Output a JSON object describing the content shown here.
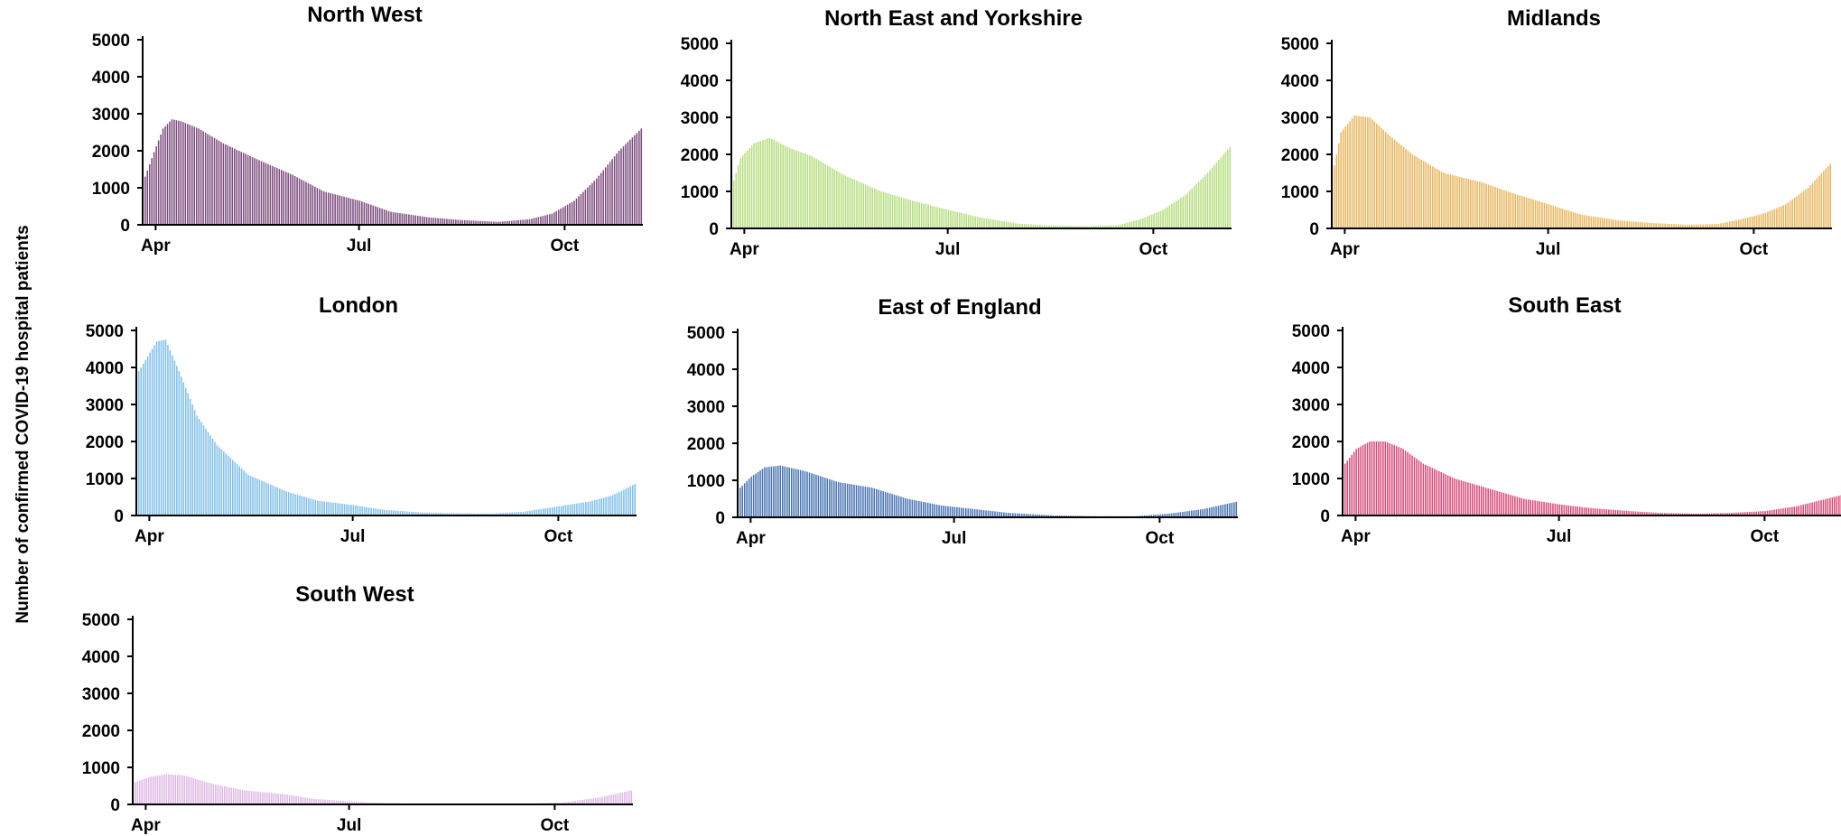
{
  "figure": {
    "ylabel": "Number of confirmed COVID-19 hospital patients"
  },
  "chart_data": [
    {
      "type": "bar",
      "title": "North West",
      "color": "#7b4a7c",
      "ylim": [
        0,
        5000
      ],
      "yticks": [
        0,
        1000,
        2000,
        3000,
        4000,
        5000
      ],
      "x_tick_labels": [
        "Apr",
        "Jul",
        "Oct"
      ],
      "x_range": [
        "2020-03-27",
        "2020-11-04"
      ],
      "keyframes": [
        [
          "2020-03-27",
          1300
        ],
        [
          "2020-03-30",
          1800
        ],
        [
          "2020-04-04",
          2600
        ],
        [
          "2020-04-08",
          2850
        ],
        [
          "2020-04-12",
          2800
        ],
        [
          "2020-04-20",
          2600
        ],
        [
          "2020-05-01",
          2200
        ],
        [
          "2020-05-15",
          1800
        ],
        [
          "2020-06-01",
          1350
        ],
        [
          "2020-06-15",
          900
        ],
        [
          "2020-07-01",
          650
        ],
        [
          "2020-07-15",
          350
        ],
        [
          "2020-08-01",
          200
        ],
        [
          "2020-08-15",
          130
        ],
        [
          "2020-09-01",
          80
        ],
        [
          "2020-09-15",
          150
        ],
        [
          "2020-09-25",
          300
        ],
        [
          "2020-10-05",
          650
        ],
        [
          "2020-10-15",
          1250
        ],
        [
          "2020-10-25",
          2000
        ],
        [
          "2020-11-04",
          2600
        ]
      ]
    },
    {
      "type": "bar",
      "title": "North East and Yorkshire",
      "color": "#b6dd7e",
      "ylim": [
        0,
        5000
      ],
      "yticks": [
        0,
        1000,
        2000,
        3000,
        4000,
        5000
      ],
      "x_tick_labels": [
        "Apr",
        "Jul",
        "Oct"
      ],
      "x_range": [
        "2020-03-27",
        "2020-11-04"
      ],
      "keyframes": [
        [
          "2020-03-27",
          1300
        ],
        [
          "2020-03-30",
          1900
        ],
        [
          "2020-04-05",
          2300
        ],
        [
          "2020-04-12",
          2450
        ],
        [
          "2020-04-20",
          2200
        ],
        [
          "2020-05-01",
          1950
        ],
        [
          "2020-05-15",
          1450
        ],
        [
          "2020-06-01",
          1000
        ],
        [
          "2020-06-15",
          750
        ],
        [
          "2020-07-01",
          500
        ],
        [
          "2020-07-15",
          300
        ],
        [
          "2020-08-01",
          130
        ],
        [
          "2020-08-15",
          80
        ],
        [
          "2020-09-01",
          60
        ],
        [
          "2020-09-15",
          90
        ],
        [
          "2020-09-25",
          250
        ],
        [
          "2020-10-05",
          500
        ],
        [
          "2020-10-15",
          900
        ],
        [
          "2020-10-25",
          1500
        ],
        [
          "2020-11-04",
          2200
        ]
      ]
    },
    {
      "type": "bar",
      "title": "Midlands",
      "color": "#e8b55c",
      "ylim": [
        0,
        5000
      ],
      "yticks": [
        0,
        1000,
        2000,
        3000,
        4000,
        5000
      ],
      "x_tick_labels": [
        "Apr",
        "Jul",
        "Oct"
      ],
      "x_range": [
        "2020-03-27",
        "2020-11-04"
      ],
      "keyframes": [
        [
          "2020-03-27",
          1700
        ],
        [
          "2020-03-30",
          2600
        ],
        [
          "2020-04-05",
          3050
        ],
        [
          "2020-04-12",
          3000
        ],
        [
          "2020-04-20",
          2550
        ],
        [
          "2020-05-01",
          2000
        ],
        [
          "2020-05-15",
          1500
        ],
        [
          "2020-05-25",
          1350
        ],
        [
          "2020-06-01",
          1250
        ],
        [
          "2020-06-15",
          950
        ],
        [
          "2020-07-01",
          650
        ],
        [
          "2020-07-15",
          380
        ],
        [
          "2020-08-01",
          220
        ],
        [
          "2020-08-15",
          150
        ],
        [
          "2020-09-01",
          100
        ],
        [
          "2020-09-15",
          120
        ],
        [
          "2020-09-25",
          250
        ],
        [
          "2020-10-05",
          400
        ],
        [
          "2020-10-15",
          650
        ],
        [
          "2020-10-25",
          1100
        ],
        [
          "2020-11-04",
          1750
        ]
      ]
    },
    {
      "type": "bar",
      "title": "London",
      "color": "#7fbfea",
      "ylim": [
        0,
        5000
      ],
      "yticks": [
        0,
        1000,
        2000,
        3000,
        4000,
        5000
      ],
      "x_tick_labels": [
        "Apr",
        "Jul",
        "Oct"
      ],
      "x_range": [
        "2020-03-27",
        "2020-11-04"
      ],
      "keyframes": [
        [
          "2020-03-27",
          3900
        ],
        [
          "2020-03-31",
          4300
        ],
        [
          "2020-04-04",
          4700
        ],
        [
          "2020-04-08",
          4750
        ],
        [
          "2020-04-14",
          3900
        ],
        [
          "2020-04-22",
          2700
        ],
        [
          "2020-05-01",
          1900
        ],
        [
          "2020-05-15",
          1100
        ],
        [
          "2020-06-01",
          650
        ],
        [
          "2020-06-15",
          400
        ],
        [
          "2020-07-01",
          280
        ],
        [
          "2020-07-15",
          150
        ],
        [
          "2020-08-01",
          80
        ],
        [
          "2020-08-15",
          60
        ],
        [
          "2020-09-01",
          50
        ],
        [
          "2020-09-15",
          100
        ],
        [
          "2020-10-01",
          250
        ],
        [
          "2020-10-15",
          380
        ],
        [
          "2020-10-25",
          550
        ],
        [
          "2020-11-04",
          850
        ]
      ]
    },
    {
      "type": "bar",
      "title": "East of England",
      "color": "#4672b3",
      "ylim": [
        0,
        5000
      ],
      "yticks": [
        0,
        1000,
        2000,
        3000,
        4000,
        5000
      ],
      "x_tick_labels": [
        "Apr",
        "Jul",
        "Oct"
      ],
      "x_range": [
        "2020-03-27",
        "2020-11-04"
      ],
      "keyframes": [
        [
          "2020-03-27",
          800
        ],
        [
          "2020-04-01",
          1100
        ],
        [
          "2020-04-07",
          1350
        ],
        [
          "2020-04-14",
          1400
        ],
        [
          "2020-04-25",
          1250
        ],
        [
          "2020-05-10",
          950
        ],
        [
          "2020-05-25",
          800
        ],
        [
          "2020-06-10",
          500
        ],
        [
          "2020-06-25",
          320
        ],
        [
          "2020-07-10",
          220
        ],
        [
          "2020-07-25",
          120
        ],
        [
          "2020-08-15",
          50
        ],
        [
          "2020-09-01",
          30
        ],
        [
          "2020-09-20",
          30
        ],
        [
          "2020-10-05",
          100
        ],
        [
          "2020-10-20",
          220
        ],
        [
          "2020-11-04",
          420
        ]
      ]
    },
    {
      "type": "bar",
      "title": "South East",
      "color": "#d94a78",
      "ylim": [
        0,
        5000
      ],
      "yticks": [
        0,
        1000,
        2000,
        3000,
        4000,
        5000
      ],
      "x_tick_labels": [
        "Apr",
        "Jul",
        "Oct"
      ],
      "x_range": [
        "2020-03-27",
        "2020-11-04"
      ],
      "keyframes": [
        [
          "2020-03-27",
          1400
        ],
        [
          "2020-04-01",
          1800
        ],
        [
          "2020-04-07",
          2000
        ],
        [
          "2020-04-14",
          2000
        ],
        [
          "2020-04-22",
          1800
        ],
        [
          "2020-05-01",
          1400
        ],
        [
          "2020-05-15",
          1000
        ],
        [
          "2020-06-01",
          700
        ],
        [
          "2020-06-15",
          450
        ],
        [
          "2020-07-01",
          300
        ],
        [
          "2020-07-15",
          200
        ],
        [
          "2020-08-01",
          120
        ],
        [
          "2020-08-15",
          70
        ],
        [
          "2020-09-01",
          50
        ],
        [
          "2020-09-15",
          70
        ],
        [
          "2020-10-01",
          120
        ],
        [
          "2020-10-15",
          250
        ],
        [
          "2020-11-04",
          550
        ]
      ]
    },
    {
      "type": "bar",
      "title": "South West",
      "color": "#ddb8e4",
      "ylim": [
        0,
        5000
      ],
      "yticks": [
        0,
        1000,
        2000,
        3000,
        4000,
        5000
      ],
      "x_tick_labels": [
        "Apr",
        "Jul",
        "Oct"
      ],
      "x_range": [
        "2020-03-27",
        "2020-11-04"
      ],
      "keyframes": [
        [
          "2020-03-27",
          600
        ],
        [
          "2020-04-03",
          750
        ],
        [
          "2020-04-10",
          820
        ],
        [
          "2020-04-18",
          780
        ],
        [
          "2020-05-01",
          550
        ],
        [
          "2020-05-15",
          380
        ],
        [
          "2020-06-01",
          280
        ],
        [
          "2020-06-15",
          150
        ],
        [
          "2020-07-01",
          80
        ],
        [
          "2020-07-15",
          40
        ],
        [
          "2020-08-01",
          20
        ],
        [
          "2020-09-01",
          15
        ],
        [
          "2020-09-20",
          20
        ],
        [
          "2020-10-05",
          60
        ],
        [
          "2020-10-20",
          180
        ],
        [
          "2020-11-04",
          380
        ]
      ]
    }
  ]
}
